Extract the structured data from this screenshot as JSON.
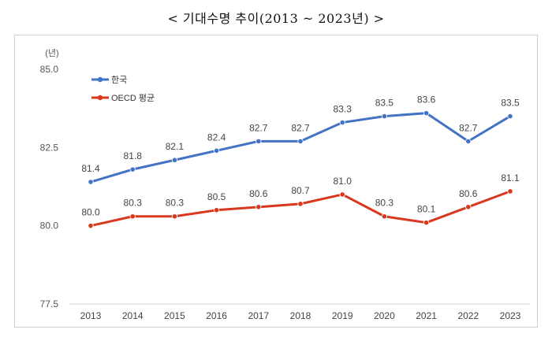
{
  "title": "< 기대수명 추이(2013 ~ 2023년) >",
  "chart_data": {
    "type": "line",
    "title": "< 기대수명 추이(2013 ~ 2023년) >",
    "unit_label": "(년)",
    "x": [
      "2013",
      "2014",
      "2015",
      "2016",
      "2017",
      "2018",
      "2019",
      "2020",
      "2021",
      "2022",
      "2023"
    ],
    "ylim": [
      77.5,
      85.0
    ],
    "yticks": [
      "77.5",
      "80.0",
      "82.5",
      "85.0"
    ],
    "grid": false,
    "legend_placement": "top-left",
    "series": [
      {
        "name": "한국",
        "color": "#4472C4",
        "values": [
          81.4,
          81.8,
          82.1,
          82.4,
          82.7,
          82.7,
          83.3,
          83.5,
          83.6,
          82.7,
          83.5
        ],
        "labels": [
          "81.4",
          "81.8",
          "82.1",
          "82.4",
          "82.7",
          "82.7",
          "83.3",
          "83.5",
          "83.6",
          "82.7",
          "83.5"
        ]
      },
      {
        "name": "OECD 평균",
        "color": "#D9381E",
        "values": [
          80.0,
          80.3,
          80.3,
          80.5,
          80.6,
          80.7,
          81.0,
          80.3,
          80.1,
          80.6,
          81.1
        ],
        "labels": [
          "80.0",
          "80.3",
          "80.3",
          "80.5",
          "80.6",
          "80.7",
          "81.0",
          "80.3",
          "80.1",
          "80.6",
          "81.1"
        ]
      }
    ]
  }
}
